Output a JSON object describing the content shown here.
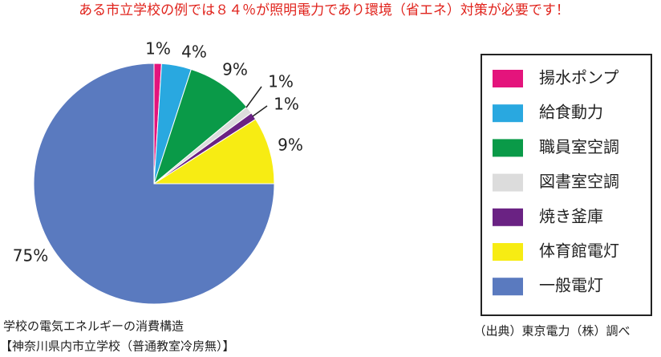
{
  "chart_data": {
    "type": "pie",
    "title": "ある市立学校の例では８４％が照明電力であり環境（省エネ）対策が必要です！",
    "caption": [
      "学校の電気エネルギーの消費構造",
      "【神奈川県内市立学校（普通教室冷房無）】"
    ],
    "source": "（出典）東京電力（株）調べ",
    "categories": [
      "揚水ポンプ",
      "給食動力",
      "職員室空調",
      "図書室空調",
      "焼き釜庫",
      "体育館電灯",
      "一般電灯"
    ],
    "values": [
      1,
      4,
      9,
      1,
      1,
      9,
      75
    ],
    "value_labels": [
      "1%",
      "4%",
      "9%",
      "1%",
      "1%",
      "9%",
      "75%"
    ],
    "colors": [
      "#e4147c",
      "#29a8e0",
      "#0a9a48",
      "#dcdcdc",
      "#6a2283",
      "#f7ec13",
      "#5a7abf"
    ]
  }
}
